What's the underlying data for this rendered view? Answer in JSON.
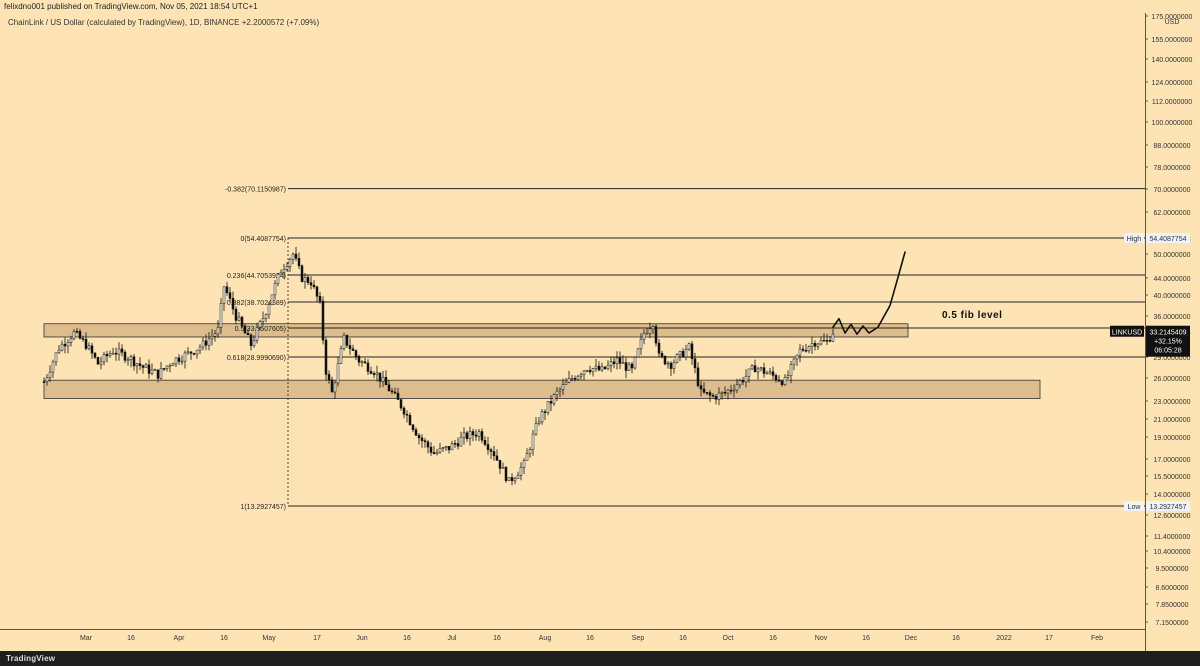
{
  "header": {
    "publish_text": "felixdno001 published on TradingView.com, Nov 05, 2021 18:54 UTC+1"
  },
  "symbol_line": "ChainLink / US Dollar (calculated by TradingView), 1D, BINANCE  +2.2000572 (+7.09%)",
  "footer": {
    "logo_text": "TradingView"
  },
  "price_axis": {
    "currency": "USD",
    "ticks": [
      175,
      155,
      140,
      124,
      112,
      100,
      88,
      78,
      70,
      62,
      54,
      50,
      44,
      40,
      36,
      33,
      29,
      26,
      23,
      21,
      19,
      17,
      15.5,
      14,
      12.6,
      11.4,
      10.4,
      9.5,
      8.6,
      7.85,
      7.15
    ],
    "tick_labels": [
      "175.0000000",
      "155.0000000",
      "140.0000000",
      "124.0000000",
      "112.0000000",
      "100.0000000",
      "88.0000000",
      "78.0000000",
      "70.0000000",
      "62.0000000",
      "54.0000000",
      "50.0000000",
      "44.0000000",
      "40.0000000",
      "36.0000000",
      "33.0000000",
      "29.0000000",
      "26.0000000",
      "23.0000000",
      "21.0000000",
      "19.0000000",
      "17.0000000",
      "15.5000000",
      "14.0000000",
      "12.6000000",
      "11.4000000",
      "10.4000000",
      "9.5000000",
      "8.6000000",
      "7.8500000",
      "7.1500000"
    ]
  },
  "time_axis": {
    "labels": [
      "Mar",
      "16",
      "Apr",
      "16",
      "May",
      "17",
      "Jun",
      "16",
      "Jul",
      "16",
      "Aug",
      "16",
      "Sep",
      "16",
      "Oct",
      "16",
      "Nov",
      "16",
      "Dec",
      "16",
      "2022",
      "17",
      "Feb"
    ],
    "days": [
      0,
      15,
      31,
      46,
      61,
      77,
      92,
      107,
      122,
      137,
      153,
      168,
      184,
      199,
      214,
      229,
      245,
      260,
      275,
      290,
      306,
      321,
      337
    ]
  },
  "chart_data": {
    "type": "candlestick",
    "symbol": "LINKUSD",
    "timeframe": "1D",
    "y_scale": "log",
    "x_start": "2021-03-01",
    "ylim": [
      7.0,
      180
    ],
    "fib_levels": [
      {
        "label": "-0.382(70.1150987)",
        "value": 70.1150987
      },
      {
        "label": "0(54.4087754)",
        "value": 54.4087754
      },
      {
        "label": "0.236(44.7053924)",
        "value": 44.7053924
      },
      {
        "label": "0.382(38.7024589)",
        "value": 38.7024589
      },
      {
        "label": "0.5(33.8507605)",
        "value": 33.8507605
      },
      {
        "label": "0.618(28.9990690)",
        "value": 28.999069
      },
      {
        "label": "1(13.2927457)",
        "value": 13.2927457
      }
    ],
    "zones": [
      {
        "from": 32.3,
        "to": 34.6,
        "start": "2021-02-15",
        "end": "2021-11-30"
      },
      {
        "from": 23.3,
        "to": 25.7,
        "start": "2021-02-15",
        "end": "2022-01-13"
      }
    ],
    "price_badges": [
      {
        "label": "High",
        "value": "54.4087754",
        "price": 54.4087754
      },
      {
        "label": "Low",
        "value": "13.2927457",
        "price": 13.2927457
      },
      {
        "label": "LINKUSD",
        "value": "33.2145409",
        "change": "+32.15%",
        "countdown": "06:05:28",
        "price": 33.2145409
      }
    ],
    "annotation": "0.5 fib level",
    "ohlc_path": [
      [
        "2021-02-15",
        25.5
      ],
      [
        "2021-02-20",
        30.5
      ],
      [
        "2021-02-25",
        33.0
      ],
      [
        "2021-03-01",
        31.0
      ],
      [
        "2021-03-05",
        28.0
      ],
      [
        "2021-03-10",
        30.0
      ],
      [
        "2021-03-15",
        29.0
      ],
      [
        "2021-03-20",
        27.5
      ],
      [
        "2021-03-25",
        26.5
      ],
      [
        "2021-03-30",
        28.5
      ],
      [
        "2021-04-04",
        29.5
      ],
      [
        "2021-04-09",
        31.0
      ],
      [
        "2021-04-14",
        33.5
      ],
      [
        "2021-04-16",
        42.0
      ],
      [
        "2021-04-20",
        36.0
      ],
      [
        "2021-04-25",
        31.0
      ],
      [
        "2021-04-30",
        37.0
      ],
      [
        "2021-05-05",
        46.0
      ],
      [
        "2021-05-09",
        50.0
      ],
      [
        "2021-05-12",
        44.0
      ],
      [
        "2021-05-15",
        43.0
      ],
      [
        "2021-05-18",
        38.0
      ],
      [
        "2021-05-20",
        27.0
      ],
      [
        "2021-05-22",
        24.0
      ],
      [
        "2021-05-26",
        32.0
      ],
      [
        "2021-05-31",
        28.5
      ],
      [
        "2021-06-05",
        27.0
      ],
      [
        "2021-06-10",
        24.5
      ],
      [
        "2021-06-15",
        22.0
      ],
      [
        "2021-06-20",
        19.0
      ],
      [
        "2021-06-25",
        17.5
      ],
      [
        "2021-06-30",
        18.0
      ],
      [
        "2021-07-05",
        19.0
      ],
      [
        "2021-07-10",
        19.5
      ],
      [
        "2021-07-15",
        17.5
      ],
      [
        "2021-07-20",
        15.0
      ],
      [
        "2021-07-25",
        16.5
      ],
      [
        "2021-07-30",
        21.0
      ],
      [
        "2021-08-05",
        24.0
      ],
      [
        "2021-08-10",
        26.0
      ],
      [
        "2021-08-15",
        27.5
      ],
      [
        "2021-08-20",
        27.0
      ],
      [
        "2021-08-25",
        28.5
      ],
      [
        "2021-08-30",
        27.0
      ],
      [
        "2021-09-03",
        33.0
      ],
      [
        "2021-09-06",
        35.0
      ],
      [
        "2021-09-08",
        29.0
      ],
      [
        "2021-09-12",
        28.0
      ],
      [
        "2021-09-18",
        30.5
      ],
      [
        "2021-09-22",
        24.0
      ],
      [
        "2021-09-26",
        23.5
      ],
      [
        "2021-09-30",
        24.0
      ],
      [
        "2021-10-05",
        25.5
      ],
      [
        "2021-10-10",
        27.5
      ],
      [
        "2021-10-15",
        26.5
      ],
      [
        "2021-10-20",
        25.5
      ],
      [
        "2021-10-25",
        30.0
      ],
      [
        "2021-10-30",
        31.5
      ],
      [
        "2021-11-03",
        31.5
      ],
      [
        "2021-11-05",
        33.2
      ]
    ],
    "projection_path": [
      [
        "2021-11-05",
        34.0
      ],
      [
        "2021-11-07",
        35.5
      ],
      [
        "2021-11-09",
        33.0
      ],
      [
        "2021-11-11",
        34.5
      ],
      [
        "2021-11-13",
        32.8
      ],
      [
        "2021-11-15",
        34.2
      ],
      [
        "2021-11-17",
        33.0
      ],
      [
        "2021-11-20",
        34.0
      ],
      [
        "2021-11-24",
        38.0
      ],
      [
        "2021-11-27",
        45.0
      ],
      [
        "2021-11-29",
        50.5
      ]
    ]
  }
}
